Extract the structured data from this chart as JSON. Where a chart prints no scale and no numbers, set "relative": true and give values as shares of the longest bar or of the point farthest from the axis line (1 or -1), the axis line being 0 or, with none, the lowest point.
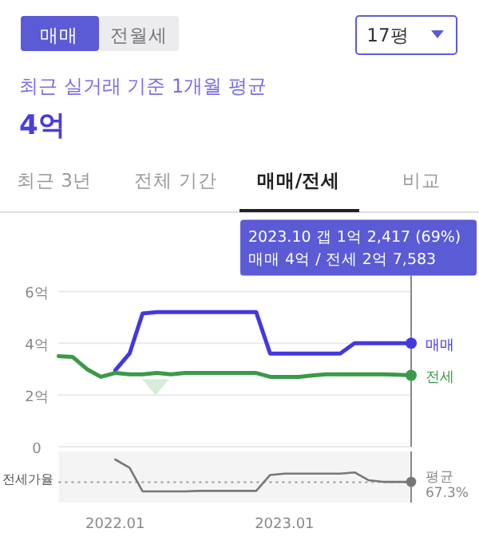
{
  "chart_data": [
    {
      "type": "other",
      "title": "최근 실거래 기준 1개월 평균",
      "subtitle": "4억",
      "annotations": [
        "매매",
        "전월세",
        "17평",
        "최근 3년",
        "전체 기간",
        "매매/전세",
        "비교"
      ]
    },
    {
      "type": "line",
      "xlim": [
        "2021-09",
        "2023-10"
      ],
      "ylim": [
        0,
        6
      ],
      "yticks": [
        0,
        {
          "value": 2,
          "label": "2억"
        },
        {
          "value": 4,
          "label": "4억"
        },
        {
          "value": 6,
          "label": "6억"
        }
      ],
      "grid": "y",
      "tick_labels": "y",
      "series": [
        {
          "name": "매매",
          "color": "#4338e0",
          "x": [
            "2022-01",
            "2022-02",
            "2022-03",
            "2022-04",
            "2022-05",
            "2022-06",
            "2022-07",
            "2022-08",
            "2022-09",
            "2022-10",
            "2022-11",
            "2022-12",
            "2023-01",
            "2023-02",
            "2023-03",
            "2023-04",
            "2023-05",
            "2023-06",
            "2023-07",
            "2023-08",
            "2023-09",
            "2023-10"
          ],
          "values": [
            2.95,
            3.6,
            5.15,
            5.2,
            5.2,
            5.2,
            5.2,
            5.2,
            5.2,
            5.2,
            5.2,
            3.6,
            3.6,
            3.6,
            3.6,
            3.6,
            3.6,
            4.0,
            4.0,
            4.0,
            4.0,
            4.0
          ]
        },
        {
          "name": "전세",
          "color": "#3a9a48",
          "x": [
            "2021-09",
            "2021-10",
            "2021-11",
            "2021-12",
            "2022-01",
            "2022-02",
            "2022-03",
            "2022-04",
            "2022-05",
            "2022-06",
            "2022-07",
            "2022-08",
            "2022-09",
            "2022-10",
            "2022-11",
            "2022-12",
            "2023-01",
            "2023-02",
            "2023-03",
            "2023-04",
            "2023-05",
            "2023-06",
            "2023-07",
            "2023-08",
            "2023-09",
            "2023-10"
          ],
          "values": [
            3.5,
            3.47,
            3.0,
            2.7,
            2.85,
            2.8,
            2.8,
            2.85,
            2.8,
            2.85,
            2.85,
            2.85,
            2.85,
            2.85,
            2.85,
            2.7,
            2.7,
            2.7,
            2.75,
            2.8,
            2.8,
            2.8,
            2.8,
            2.8,
            2.78,
            2.76
          ]
        }
      ],
      "ref_lines": [
        {
          "axis": "x",
          "value": "2023-10",
          "color": "#888888"
        }
      ],
      "annotations": [
        "2023.10  갭 1억 2,417 (69%)",
        "매매 4억 / 전세 2억 7,583"
      ]
    },
    {
      "type": "line",
      "ylabel": "전세가율",
      "xlim": [
        "2021-09",
        "2023-10"
      ],
      "relative": true,
      "tick_labels": "x",
      "xticks": [
        {
          "value": "2022-01",
          "label": "2022.01"
        },
        {
          "value": "2023-01",
          "label": "2023.01"
        }
      ],
      "series": [
        {
          "color": "#777777",
          "x": [
            "2022-01",
            "2022-02",
            "2022-03",
            "2022-04",
            "2022-05",
            "2022-06",
            "2022-07",
            "2022-08",
            "2022-09",
            "2022-10",
            "2022-11",
            "2022-12",
            "2023-01",
            "2023-02",
            "2023-03",
            "2023-04",
            "2023-05",
            "2023-06",
            "2023-07",
            "2023-08",
            "2023-09",
            "2023-10"
          ],
          "values": [
            1,
            0.81,
            0.26,
            0.26,
            0.26,
            0.26,
            0.27,
            0.27,
            0.27,
            0.27,
            0.27,
            0.64,
            0.67,
            0.67,
            0.67,
            0.67,
            0.67,
            0.7,
            0.52,
            0.48,
            0.48,
            0.48
          ]
        }
      ],
      "ref_lines": [
        {
          "axis": "y",
          "value": 0.47,
          "label": "평균 67.3%",
          "line_style": "dotted",
          "color": "#999999"
        },
        {
          "axis": "x",
          "value": "2023-10",
          "color": "#888888"
        }
      ]
    }
  ]
}
